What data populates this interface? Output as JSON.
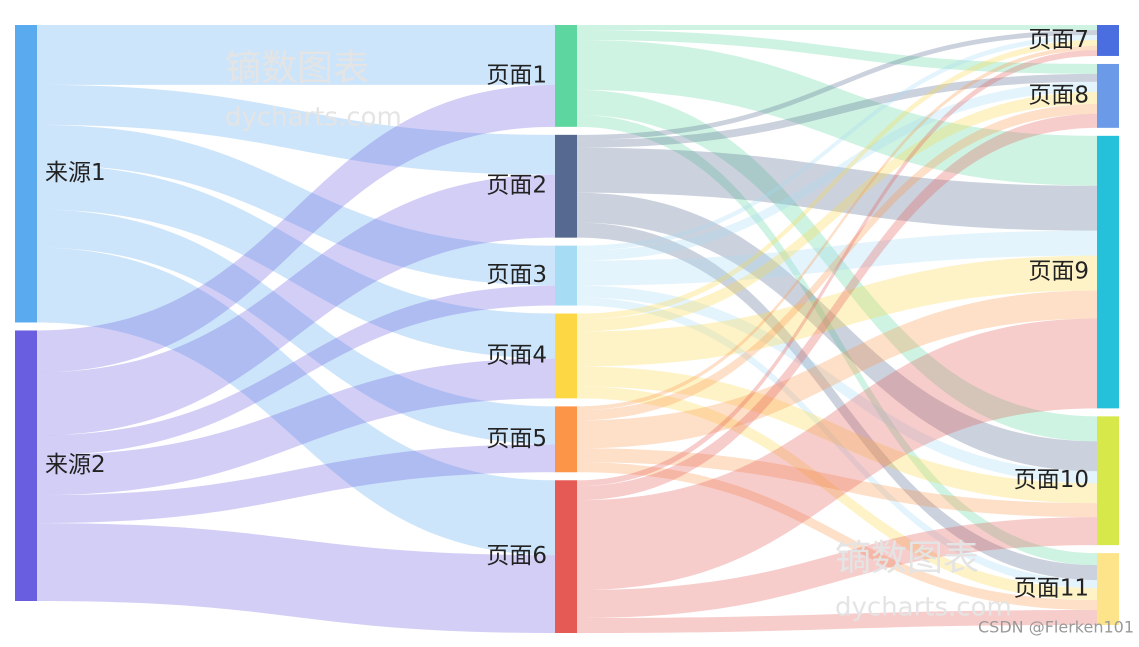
{
  "chart_data": {
    "type": "sankey",
    "nodes": [
      {
        "name": "来源1",
        "color": "#5aaaf0",
        "column": 0
      },
      {
        "name": "来源2",
        "color": "#6a5ee0",
        "column": 0
      },
      {
        "name": "页面1",
        "color": "#5ed6a0",
        "column": 1
      },
      {
        "name": "页面2",
        "color": "#566990",
        "column": 1
      },
      {
        "name": "页面3",
        "color": "#a7dcf5",
        "column": 1
      },
      {
        "name": "页面4",
        "color": "#fdd844",
        "column": 1
      },
      {
        "name": "页面5",
        "color": "#fd9548",
        "column": 1
      },
      {
        "name": "页面6",
        "color": "#e55a55",
        "column": 1
      },
      {
        "name": "页面7",
        "color": "#4a6ee0",
        "column": 2
      },
      {
        "name": "页面8",
        "color": "#6a9ae8",
        "column": 2
      },
      {
        "name": "页面9",
        "color": "#25c0da",
        "column": 2
      },
      {
        "name": "页面10",
        "color": "#d6e84a",
        "column": 2
      },
      {
        "name": "页面11",
        "color": "#fde48a",
        "column": 2
      }
    ],
    "links": [
      {
        "source": 0,
        "target": 2,
        "value": 60
      },
      {
        "source": 0,
        "target": 3,
        "value": 40
      },
      {
        "source": 0,
        "target": 4,
        "value": 40
      },
      {
        "source": 0,
        "target": 5,
        "value": 45
      },
      {
        "source": 0,
        "target": 6,
        "value": 38
      },
      {
        "source": 0,
        "target": 7,
        "value": 75
      },
      {
        "source": 1,
        "target": 2,
        "value": 42
      },
      {
        "source": 1,
        "target": 3,
        "value": 63
      },
      {
        "source": 1,
        "target": 4,
        "value": 20
      },
      {
        "source": 1,
        "target": 5,
        "value": 40
      },
      {
        "source": 1,
        "target": 6,
        "value": 28
      },
      {
        "source": 1,
        "target": 7,
        "value": 78
      },
      {
        "source": 2,
        "target": 8,
        "value": 5
      },
      {
        "source": 2,
        "target": 9,
        "value": 10
      },
      {
        "source": 2,
        "target": 10,
        "value": 50
      },
      {
        "source": 2,
        "target": 11,
        "value": 25
      },
      {
        "source": 2,
        "target": 12,
        "value": 12
      },
      {
        "source": 3,
        "target": 8,
        "value": 5
      },
      {
        "source": 3,
        "target": 9,
        "value": 8
      },
      {
        "source": 3,
        "target": 10,
        "value": 45
      },
      {
        "source": 3,
        "target": 11,
        "value": 30
      },
      {
        "source": 3,
        "target": 12,
        "value": 15
      },
      {
        "source": 4,
        "target": 8,
        "value": 5
      },
      {
        "source": 4,
        "target": 9,
        "value": 10
      },
      {
        "source": 4,
        "target": 10,
        "value": 25
      },
      {
        "source": 4,
        "target": 11,
        "value": 12
      },
      {
        "source": 4,
        "target": 12,
        "value": 8
      },
      {
        "source": 5,
        "target": 8,
        "value": 6
      },
      {
        "source": 5,
        "target": 9,
        "value": 12
      },
      {
        "source": 5,
        "target": 10,
        "value": 35
      },
      {
        "source": 5,
        "target": 11,
        "value": 20
      },
      {
        "source": 5,
        "target": 12,
        "value": 12
      },
      {
        "source": 6,
        "target": 8,
        "value": 4
      },
      {
        "source": 6,
        "target": 9,
        "value": 10
      },
      {
        "source": 6,
        "target": 10,
        "value": 28
      },
      {
        "source": 6,
        "target": 11,
        "value": 14
      },
      {
        "source": 6,
        "target": 12,
        "value": 10
      },
      {
        "source": 7,
        "target": 8,
        "value": 6
      },
      {
        "source": 7,
        "target": 9,
        "value": 14
      },
      {
        "source": 7,
        "target": 10,
        "value": 90
      },
      {
        "source": 7,
        "target": 11,
        "value": 28
      },
      {
        "source": 7,
        "target": 12,
        "value": 15
      }
    ],
    "watermark": [
      "镝数图表",
      "dycharts.com"
    ],
    "credit": "CSDN @Flerken101"
  }
}
